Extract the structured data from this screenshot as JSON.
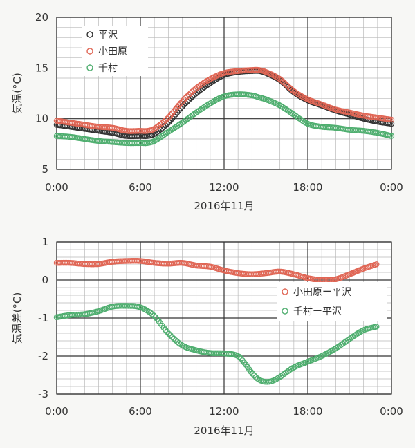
{
  "chart_data": [
    {
      "type": "scatter",
      "xlabel": "2016年11月",
      "ylabel": "気温(°C)",
      "xlim": [
        0,
        24
      ],
      "ylim": [
        5,
        20
      ],
      "x_ticks": [
        0,
        6,
        12,
        18,
        24
      ],
      "x_tick_labels": [
        "0:00",
        "6:00",
        "12:00",
        "18:00",
        "0:00"
      ],
      "y_ticks": [
        5,
        10,
        15,
        20
      ],
      "y_tick_labels": [
        "5",
        "10",
        "15",
        "20"
      ],
      "grid": true,
      "legend_position": "top-left",
      "series": [
        {
          "name": "平沢",
          "color": "#333333",
          "x": [
            0,
            1,
            2,
            3,
            4,
            5,
            6,
            6.5,
            7,
            8,
            9,
            10,
            11,
            12,
            13,
            14,
            14.5,
            15,
            16,
            17,
            18,
            19,
            20,
            21,
            22,
            23,
            24
          ],
          "y": [
            9.4,
            9.2,
            9.0,
            8.8,
            8.6,
            8.3,
            8.3,
            8.3,
            8.5,
            9.6,
            11.2,
            12.5,
            13.5,
            14.3,
            14.6,
            14.7,
            14.7,
            14.5,
            13.8,
            12.6,
            11.8,
            11.3,
            10.8,
            10.4,
            10.0,
            9.7,
            9.5
          ]
        },
        {
          "name": "小田原",
          "color": "#e06655",
          "x": [
            0,
            1,
            2,
            3,
            4,
            5,
            6,
            6.5,
            7,
            8,
            9,
            10,
            11,
            12,
            13,
            14,
            14.5,
            15,
            16,
            17,
            18,
            19,
            20,
            21,
            22,
            23,
            24
          ],
          "y": [
            9.8,
            9.6,
            9.4,
            9.2,
            9.1,
            8.8,
            8.8,
            8.8,
            9.0,
            10.1,
            11.7,
            13.0,
            13.9,
            14.5,
            14.7,
            14.8,
            14.8,
            14.6,
            13.9,
            12.7,
            11.9,
            11.4,
            10.9,
            10.6,
            10.3,
            10.1,
            9.9
          ]
        },
        {
          "name": "千村",
          "color": "#4fae6f",
          "x": [
            0,
            1,
            2,
            3,
            4,
            5,
            6,
            6.5,
            7,
            8,
            9,
            10,
            11,
            12,
            13,
            14,
            14.5,
            15,
            16,
            17,
            18,
            19,
            20,
            21,
            22,
            23,
            24
          ],
          "y": [
            8.3,
            8.2,
            8.0,
            7.8,
            7.7,
            7.6,
            7.6,
            7.6,
            7.8,
            8.7,
            9.6,
            10.6,
            11.5,
            12.2,
            12.4,
            12.3,
            12.1,
            11.9,
            11.3,
            10.4,
            9.5,
            9.2,
            9.1,
            8.9,
            8.8,
            8.6,
            8.3
          ]
        }
      ]
    },
    {
      "type": "scatter",
      "xlabel": "2016年11月",
      "ylabel": "気温差(°C)",
      "xlim": [
        0,
        24
      ],
      "ylim": [
        -3,
        1
      ],
      "x_ticks": [
        0,
        6,
        12,
        18,
        24
      ],
      "x_tick_labels": [
        "0:00",
        "6:00",
        "12:00",
        "18:00",
        "0:00"
      ],
      "y_ticks": [
        -3,
        -2,
        -1,
        0,
        1
      ],
      "y_tick_labels": [
        "-3",
        "-2",
        "-1",
        "0",
        "1"
      ],
      "grid": true,
      "legend_position": "right",
      "series": [
        {
          "name": "小田原ー平沢",
          "color": "#e06655",
          "x": [
            0,
            1,
            2,
            3,
            4,
            5,
            6,
            7,
            8,
            9,
            10,
            11,
            12,
            13,
            14,
            15,
            16,
            17,
            18,
            19,
            20,
            21,
            22,
            23
          ],
          "y": [
            0.45,
            0.45,
            0.42,
            0.42,
            0.48,
            0.5,
            0.5,
            0.45,
            0.43,
            0.45,
            0.38,
            0.35,
            0.25,
            0.18,
            0.15,
            0.18,
            0.22,
            0.15,
            0.05,
            0.0,
            0.02,
            0.15,
            0.3,
            0.42
          ]
        },
        {
          "name": "千村ー平沢",
          "color": "#4fae6f",
          "x": [
            0,
            1,
            2,
            3,
            4,
            5,
            6,
            7,
            8,
            9,
            10,
            11,
            12,
            13,
            13.5,
            14,
            14.5,
            15,
            15.5,
            16,
            17,
            18,
            19,
            20,
            21,
            22,
            23
          ],
          "y": [
            -0.98,
            -0.92,
            -0.9,
            -0.82,
            -0.7,
            -0.68,
            -0.72,
            -0.95,
            -1.4,
            -1.72,
            -1.85,
            -1.92,
            -1.93,
            -2.0,
            -2.2,
            -2.45,
            -2.62,
            -2.68,
            -2.65,
            -2.55,
            -2.3,
            -2.15,
            -2.0,
            -1.8,
            -1.55,
            -1.32,
            -1.22
          ]
        }
      ]
    }
  ]
}
